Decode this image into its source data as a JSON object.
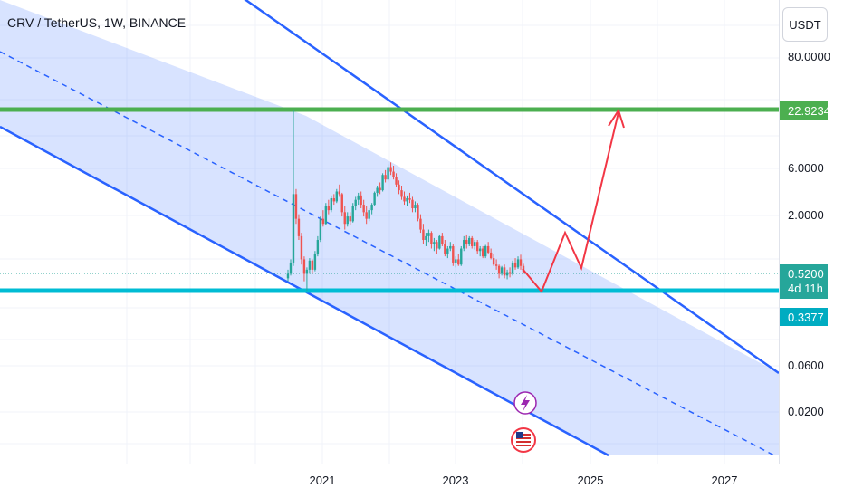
{
  "header": {
    "symbol_title": "CRV / TetherUS, 1W, BINANCE"
  },
  "toolbar": {
    "currency_label": "USDT"
  },
  "chart_data": {
    "type": "candlestick",
    "title": "CRV / TetherUS, 1W, BINANCE",
    "scale": "log",
    "y_ticks": [
      "80.0000",
      "6.0000",
      "2.0000",
      "0.0600",
      "0.0200"
    ],
    "x_ticks": [
      "2021",
      "2023",
      "2025",
      "2027"
    ],
    "price_labels": {
      "resistance": "22.9234",
      "current_price": "0.5200",
      "countdown": "4d 11h",
      "support": "0.3377"
    },
    "levels": {
      "resistance": 22.9234,
      "support": 0.3377,
      "current": 0.52
    },
    "channel": "descending parallel channel with dashed median line",
    "projection": "red arrow path: dip to support, bounce to channel top, breakout to resistance",
    "colors": {
      "channel_line": "#2962ff",
      "channel_fill": "#2962ff",
      "resistance_line": "#4caf50",
      "support_line": "#00bcd4",
      "candle_up": "#26a69a",
      "candle_down": "#ef5350",
      "projection": "#f23645",
      "current_badge": "#26a69a",
      "support_badge": "#00acc1"
    },
    "series": [
      {
        "values": [
          [
            0.45,
            0.55,
            0.42,
            0.5
          ],
          [
            0.5,
            0.7,
            0.48,
            0.65
          ],
          [
            0.65,
            22.9,
            0.6,
            3.2
          ],
          [
            3.2,
            3.6,
            1.6,
            1.8
          ],
          [
            1.8,
            2.0,
            1.1,
            1.2
          ],
          [
            1.2,
            1.3,
            0.62,
            0.7
          ],
          [
            0.7,
            0.75,
            0.42,
            0.5
          ],
          [
            0.5,
            0.58,
            0.336,
            0.55
          ],
          [
            0.55,
            0.72,
            0.5,
            0.68
          ],
          [
            0.68,
            0.7,
            0.5,
            0.55
          ],
          [
            0.55,
            0.85,
            0.53,
            0.8
          ],
          [
            0.8,
            1.2,
            0.75,
            1.1
          ],
          [
            1.1,
            1.9,
            1.05,
            1.8
          ],
          [
            1.8,
            2.2,
            1.5,
            1.6
          ],
          [
            1.6,
            2.6,
            1.55,
            2.4
          ],
          [
            2.4,
            2.8,
            2.0,
            2.2
          ],
          [
            2.2,
            3.1,
            2.1,
            2.9
          ],
          [
            2.9,
            3.2,
            2.5,
            2.7
          ],
          [
            2.7,
            3.6,
            2.6,
            3.4
          ],
          [
            3.4,
            4.0,
            3.0,
            3.2
          ],
          [
            3.2,
            3.3,
            1.9,
            2.1
          ],
          [
            2.1,
            2.4,
            1.4,
            1.6
          ],
          [
            1.6,
            2.1,
            1.5,
            1.9
          ],
          [
            1.9,
            2.1,
            1.55,
            1.7
          ],
          [
            1.7,
            2.6,
            1.65,
            2.4
          ],
          [
            2.4,
            3.0,
            2.2,
            2.8
          ],
          [
            2.8,
            3.3,
            2.5,
            3.1
          ],
          [
            3.1,
            3.4,
            2.3,
            2.5
          ],
          [
            2.5,
            2.8,
            1.9,
            2.1
          ],
          [
            2.1,
            2.4,
            1.6,
            1.8
          ],
          [
            1.8,
            2.3,
            1.7,
            2.2
          ],
          [
            2.2,
            2.6,
            2.0,
            2.5
          ],
          [
            2.5,
            3.4,
            2.4,
            3.3
          ],
          [
            3.3,
            3.9,
            3.0,
            3.7
          ],
          [
            3.7,
            4.2,
            3.2,
            3.5
          ],
          [
            3.5,
            5.2,
            3.4,
            5.0
          ],
          [
            5.0,
            5.6,
            4.2,
            4.5
          ],
          [
            4.5,
            6.4,
            4.3,
            6.0
          ],
          [
            6.0,
            6.7,
            5.0,
            5.4
          ],
          [
            5.4,
            6.2,
            4.5,
            4.8
          ],
          [
            4.8,
            5.2,
            3.8,
            4.0
          ],
          [
            4.0,
            4.4,
            3.2,
            3.5
          ],
          [
            3.5,
            3.9,
            2.8,
            3.0
          ],
          [
            3.0,
            3.4,
            2.5,
            2.7
          ],
          [
            2.7,
            3.1,
            2.4,
            2.9
          ],
          [
            2.9,
            3.3,
            2.6,
            2.8
          ],
          [
            2.8,
            3.0,
            2.1,
            2.3
          ],
          [
            2.3,
            2.7,
            2.1,
            2.5
          ],
          [
            2.5,
            2.6,
            1.7,
            1.8
          ],
          [
            1.8,
            2.0,
            1.3,
            1.4
          ],
          [
            1.4,
            1.6,
            1.0,
            1.1
          ],
          [
            1.1,
            1.3,
            0.95,
            1.2
          ],
          [
            1.2,
            1.4,
            1.05,
            1.3
          ],
          [
            1.3,
            1.35,
            0.9,
            1.0
          ],
          [
            1.0,
            1.15,
            0.85,
            1.05
          ],
          [
            1.05,
            1.1,
            0.8,
            0.9
          ],
          [
            0.9,
            1.25,
            0.88,
            1.2
          ],
          [
            1.2,
            1.3,
            0.95,
            1.0
          ],
          [
            1.0,
            1.1,
            0.75,
            0.8
          ],
          [
            0.8,
            0.95,
            0.72,
            0.9
          ],
          [
            0.9,
            1.05,
            0.85,
            0.95
          ],
          [
            0.95,
            1.0,
            0.6,
            0.65
          ],
          [
            0.65,
            0.75,
            0.58,
            0.7
          ],
          [
            0.7,
            0.8,
            0.6,
            0.62
          ],
          [
            0.62,
            0.95,
            0.6,
            0.9
          ],
          [
            0.9,
            1.2,
            0.85,
            1.1
          ],
          [
            1.1,
            1.25,
            0.9,
            1.0
          ],
          [
            1.0,
            1.2,
            0.95,
            1.15
          ],
          [
            1.15,
            1.2,
            0.9,
            0.95
          ],
          [
            0.95,
            1.1,
            0.88,
            1.05
          ],
          [
            1.05,
            1.1,
            0.8,
            0.85
          ],
          [
            0.85,
            0.95,
            0.75,
            0.9
          ],
          [
            0.9,
            0.95,
            0.72,
            0.75
          ],
          [
            0.75,
            0.98,
            0.72,
            0.95
          ],
          [
            0.95,
            1.05,
            0.8,
            0.82
          ],
          [
            0.82,
            0.9,
            0.7,
            0.72
          ],
          [
            0.72,
            0.8,
            0.6,
            0.62
          ],
          [
            0.62,
            0.7,
            0.55,
            0.6
          ],
          [
            0.6,
            0.62,
            0.45,
            0.5
          ],
          [
            0.5,
            0.6,
            0.48,
            0.58
          ],
          [
            0.58,
            0.62,
            0.45,
            0.48
          ],
          [
            0.48,
            0.55,
            0.44,
            0.52
          ],
          [
            0.52,
            0.58,
            0.46,
            0.5
          ],
          [
            0.5,
            0.68,
            0.48,
            0.65
          ],
          [
            0.65,
            0.72,
            0.55,
            0.58
          ],
          [
            0.58,
            0.75,
            0.56,
            0.7
          ],
          [
            0.7,
            0.78,
            0.55,
            0.6
          ],
          [
            0.6,
            0.63,
            0.5,
            0.52
          ]
        ]
      }
    ]
  },
  "drawings": {
    "badges": {
      "support_marker_icon": "lightning-icon",
      "event_icon": "us-flag-icon"
    }
  }
}
